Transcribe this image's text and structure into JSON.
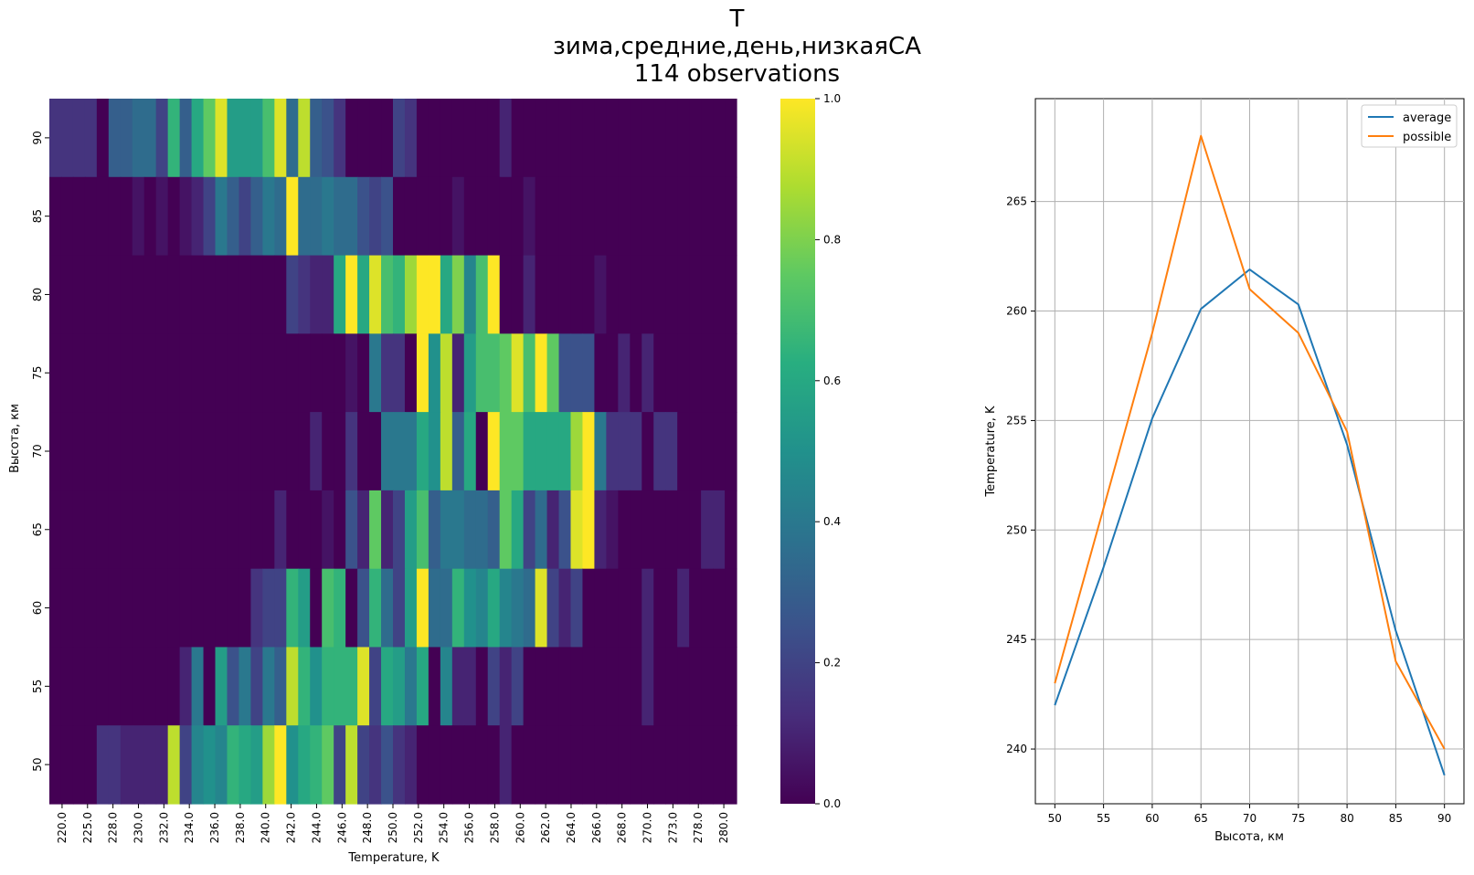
{
  "title": [
    "T",
    "зима,средние,день,низкаяСА",
    "114 observations"
  ],
  "chart_data": [
    {
      "type": "heatmap",
      "xlabel": "Temperature, K",
      "ylabel": "Высота, км",
      "x_ticks": [
        "220.0",
        "225.0",
        "228.0",
        "230.0",
        "232.0",
        "234.0",
        "236.0",
        "238.0",
        "240.0",
        "242.0",
        "244.0",
        "246.0",
        "248.0",
        "250.0",
        "252.0",
        "254.0",
        "256.0",
        "258.0",
        "260.0",
        "262.0",
        "264.0",
        "266.0",
        "268.0",
        "270.0",
        "273.0",
        "278.0",
        "280.0"
      ],
      "y_ticks": [
        "90",
        "85",
        "80",
        "75",
        "70",
        "65",
        "60",
        "55",
        "50"
      ],
      "colorbar": {
        "min": 0.0,
        "max": 1.0,
        "ticks": [
          "0.0",
          "0.2",
          "0.4",
          "0.6",
          "0.8",
          "1.0"
        ],
        "colormap": "viridis"
      },
      "values": [
        [
          0.15,
          0.15,
          0.15,
          0.15,
          0,
          0.3,
          0.3,
          0.35,
          0.35,
          0.2,
          0.65,
          0.3,
          0.6,
          0.75,
          0.95,
          0.55,
          0.55,
          0.55,
          0.7,
          0.95,
          0.35,
          0.9,
          0.3,
          0.25,
          0.15,
          0,
          0,
          0,
          0,
          0.2,
          0.15,
          0,
          0,
          0,
          0,
          0,
          0,
          0,
          0.1,
          0,
          0,
          0,
          0,
          0,
          0,
          0,
          0,
          0,
          0,
          0,
          0,
          0,
          0,
          0,
          0,
          0,
          0,
          0
        ],
        [
          0,
          0,
          0,
          0,
          0,
          0,
          0,
          0.05,
          0,
          0.05,
          0,
          0.05,
          0.1,
          0.2,
          0.4,
          0.3,
          0.2,
          0.3,
          0.4,
          0.35,
          1.0,
          0.35,
          0.35,
          0.4,
          0.35,
          0.35,
          0.25,
          0.2,
          0.25,
          0,
          0,
          0,
          0,
          0,
          0.05,
          0,
          0,
          0,
          0,
          0,
          0.05,
          0,
          0,
          0,
          0,
          0,
          0,
          0,
          0,
          0,
          0,
          0,
          0,
          0,
          0,
          0,
          0,
          0
        ],
        [
          0,
          0,
          0,
          0,
          0,
          0,
          0,
          0,
          0,
          0,
          0,
          0,
          0,
          0,
          0,
          0,
          0,
          0,
          0,
          0,
          0.2,
          0.15,
          0.1,
          0.1,
          0.6,
          1.0,
          0.6,
          0.95,
          0.7,
          0.65,
          0.85,
          1.0,
          1.0,
          0.6,
          0.8,
          0.45,
          0.7,
          1.0,
          0,
          0,
          0.1,
          0,
          0,
          0,
          0,
          0,
          0.05,
          0,
          0,
          0,
          0,
          0,
          0,
          0,
          0,
          0,
          0,
          0
        ],
        [
          0,
          0,
          0,
          0,
          0,
          0,
          0,
          0,
          0,
          0,
          0,
          0,
          0,
          0,
          0,
          0,
          0,
          0,
          0,
          0,
          0,
          0,
          0,
          0,
          0,
          0.05,
          0,
          0.4,
          0.15,
          0.15,
          0,
          1.0,
          0.5,
          0.9,
          0.1,
          0.55,
          0.7,
          0.7,
          0.75,
          0.95,
          0.7,
          1.0,
          0.75,
          0.25,
          0.25,
          0.25,
          0,
          0,
          0.1,
          0,
          0.1,
          0,
          0,
          0,
          0,
          0,
          0,
          0
        ],
        [
          0,
          0,
          0,
          0,
          0,
          0,
          0,
          0,
          0,
          0,
          0,
          0,
          0,
          0,
          0,
          0,
          0,
          0,
          0,
          0,
          0,
          0,
          0.1,
          0,
          0,
          0.15,
          0,
          0,
          0.4,
          0.4,
          0.4,
          0.6,
          0.5,
          0.9,
          0.3,
          0.6,
          0,
          1.0,
          0.75,
          0.75,
          0.6,
          0.6,
          0.6,
          0.6,
          0.85,
          1.0,
          0.4,
          0.15,
          0.15,
          0.15,
          0,
          0.15,
          0.15,
          0,
          0,
          0,
          0,
          0
        ],
        [
          0,
          0,
          0,
          0,
          0,
          0,
          0,
          0,
          0,
          0,
          0,
          0,
          0,
          0,
          0,
          0,
          0,
          0,
          0,
          0.1,
          0,
          0,
          0,
          0.05,
          0,
          0.25,
          0.1,
          0.75,
          0.1,
          0.2,
          0.55,
          0.7,
          0.3,
          0.4,
          0.4,
          0.35,
          0.35,
          0.3,
          0.75,
          0.6,
          0.2,
          0.35,
          0.1,
          0.25,
          0.95,
          1.0,
          0.1,
          0.05,
          0,
          0,
          0,
          0,
          0,
          0,
          0,
          0.1,
          0.1,
          0
        ],
        [
          0,
          0,
          0,
          0,
          0,
          0,
          0,
          0,
          0,
          0,
          0,
          0,
          0,
          0,
          0,
          0,
          0,
          0.15,
          0.2,
          0.2,
          0.65,
          0.55,
          0,
          0.7,
          0.65,
          0,
          0.25,
          0.65,
          0.35,
          0.2,
          0.55,
          1.0,
          0.35,
          0.35,
          0.65,
          0.5,
          0.45,
          0.6,
          0.45,
          0.4,
          0.35,
          0.95,
          0.2,
          0.1,
          0.2,
          0,
          0,
          0,
          0,
          0,
          0.1,
          0,
          0,
          0.1,
          0,
          0,
          0,
          0
        ],
        [
          0,
          0,
          0,
          0,
          0,
          0,
          0,
          0,
          0,
          0,
          0,
          0.1,
          0.4,
          0,
          0.55,
          0.25,
          0.4,
          0.2,
          0.4,
          0.3,
          0.9,
          0.65,
          0.5,
          0.65,
          0.65,
          0.65,
          0.95,
          0.2,
          0.6,
          0.55,
          0.4,
          0.6,
          0,
          0.45,
          0.1,
          0.1,
          0,
          0.2,
          0.1,
          0.2,
          0,
          0,
          0,
          0,
          0,
          0,
          0,
          0,
          0,
          0,
          0.1,
          0,
          0,
          0,
          0,
          0,
          0,
          0
        ],
        [
          0,
          0,
          0,
          0,
          0.15,
          0.15,
          0.1,
          0.1,
          0.1,
          0.1,
          0.9,
          0.2,
          0.45,
          0.5,
          0.45,
          0.65,
          0.6,
          0.55,
          0.85,
          1.0,
          0.5,
          0.6,
          0.65,
          0.75,
          0.2,
          0.9,
          0.2,
          0.15,
          0.25,
          0.15,
          0.1,
          0,
          0,
          0,
          0,
          0,
          0,
          0,
          0.1,
          0,
          0,
          0,
          0,
          0,
          0,
          0,
          0,
          0,
          0,
          0,
          0,
          0,
          0,
          0,
          0,
          0,
          0,
          0
        ]
      ]
    },
    {
      "type": "line",
      "xlabel": "Высота, км",
      "ylabel": "Temperature, K",
      "x": [
        50,
        55,
        60,
        65,
        70,
        75,
        80,
        85,
        90
      ],
      "xlim": [
        48,
        92
      ],
      "ylim": [
        237.5,
        269.7
      ],
      "y_ticks": [
        240,
        245,
        250,
        255,
        260,
        265
      ],
      "grid": true,
      "legend": "top-right",
      "series": [
        {
          "name": "average",
          "color": "#1f77b4",
          "values": [
            242.0,
            248.3,
            255.1,
            260.1,
            261.9,
            260.3,
            253.9,
            245.4,
            238.8
          ]
        },
        {
          "name": "possible",
          "color": "#ff7f0e",
          "values": [
            243.0,
            251.0,
            259.0,
            268.0,
            261.0,
            259.0,
            254.5,
            244.0,
            240.0
          ]
        }
      ]
    }
  ]
}
